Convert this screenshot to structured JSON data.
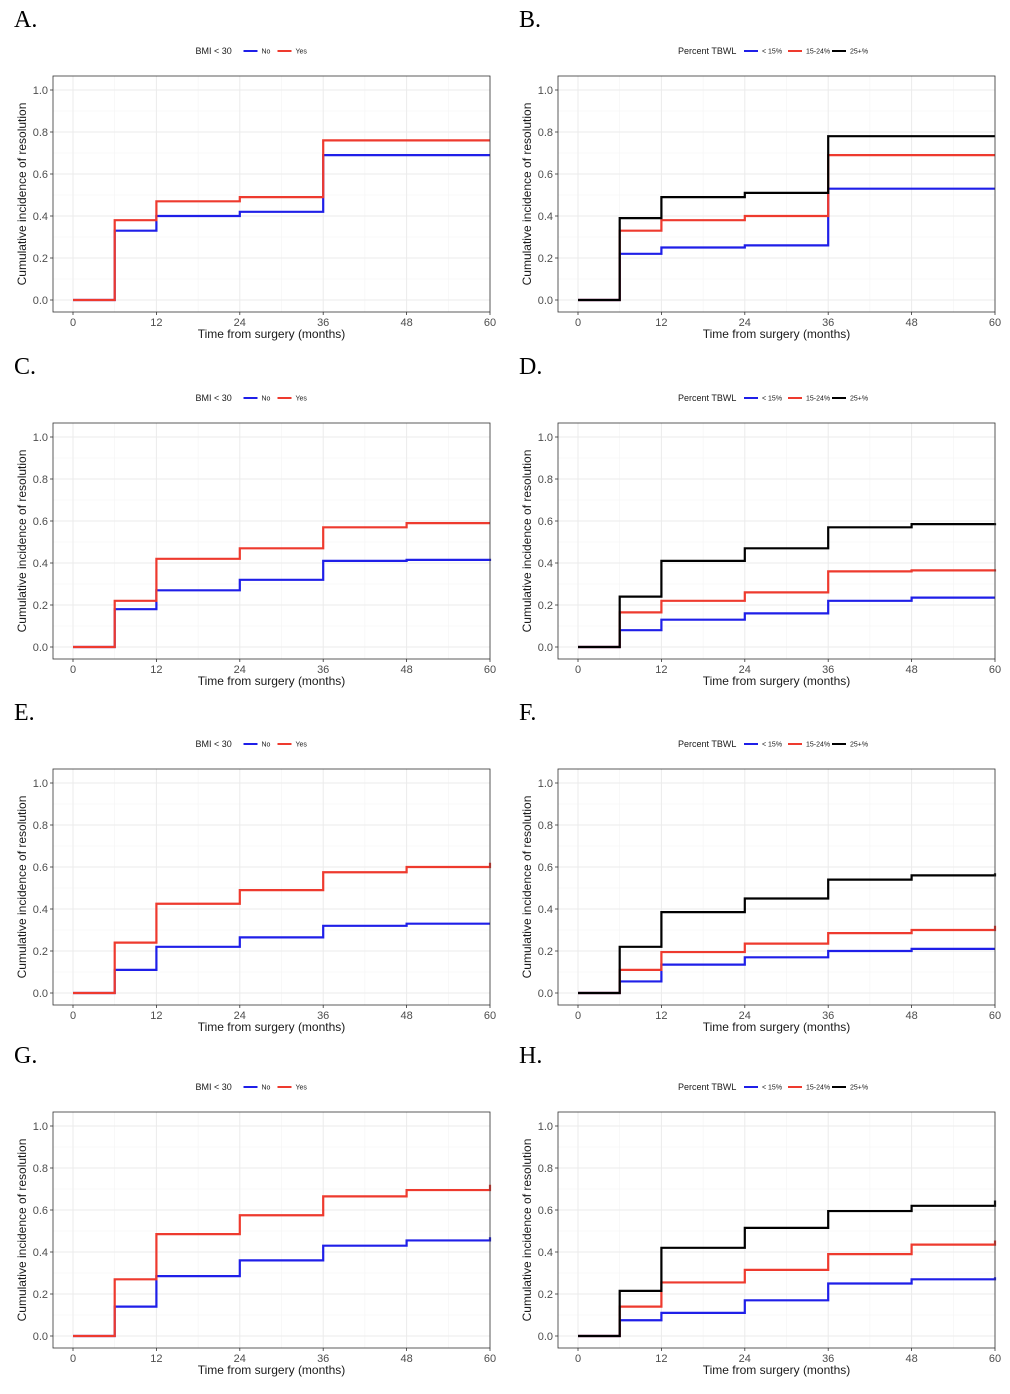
{
  "colors": {
    "blue": "#1f1fe8",
    "red": "#ee3a2e",
    "black": "#000000"
  },
  "chart_data": [
    {
      "panel": "A.",
      "type": "line",
      "title": "",
      "xlabel": "Time from surgery (months)",
      "ylabel": "Cumulative incidence of resolution",
      "xlim": [
        0,
        60
      ],
      "ylim": [
        0,
        1
      ],
      "xticks": [
        0,
        12,
        24,
        36,
        48,
        60
      ],
      "yticks": [
        0.0,
        0.2,
        0.4,
        0.6,
        0.8,
        1.0
      ],
      "legend": {
        "title": "BMI < 30",
        "position": "top"
      },
      "series": [
        {
          "name": "No",
          "color": "blue",
          "step": true,
          "x": [
            0,
            6,
            12,
            24,
            36,
            60
          ],
          "y": [
            0,
            0.33,
            0.4,
            0.42,
            0.69,
            0.69
          ]
        },
        {
          "name": "Yes",
          "color": "red",
          "step": true,
          "x": [
            0,
            6,
            12,
            24,
            36,
            60
          ],
          "y": [
            0,
            0.38,
            0.47,
            0.49,
            0.76,
            0.76
          ]
        }
      ]
    },
    {
      "panel": "B.",
      "type": "line",
      "title": "",
      "xlabel": "Time from surgery (months)",
      "ylabel": "Cumulative incidence of resolution",
      "xlim": [
        0,
        60
      ],
      "ylim": [
        0,
        1
      ],
      "xticks": [
        0,
        12,
        24,
        36,
        48,
        60
      ],
      "yticks": [
        0.0,
        0.2,
        0.4,
        0.6,
        0.8,
        1.0
      ],
      "legend": {
        "title": "Percent TBWL",
        "position": "top"
      },
      "series": [
        {
          "name": "< 15%",
          "color": "blue",
          "step": true,
          "x": [
            0,
            6,
            12,
            24,
            36,
            60
          ],
          "y": [
            0,
            0.22,
            0.25,
            0.26,
            0.53,
            0.53
          ]
        },
        {
          "name": "15-24%",
          "color": "red",
          "step": true,
          "x": [
            0,
            6,
            12,
            24,
            36,
            60
          ],
          "y": [
            0,
            0.33,
            0.38,
            0.4,
            0.69,
            0.69
          ]
        },
        {
          "name": "25+%",
          "color": "black",
          "step": true,
          "x": [
            0,
            6,
            12,
            24,
            36,
            60
          ],
          "y": [
            0,
            0.39,
            0.49,
            0.51,
            0.78,
            0.78
          ]
        }
      ]
    },
    {
      "panel": "C.",
      "type": "line",
      "title": "",
      "xlabel": "Time from surgery (months)",
      "ylabel": "Cumulative incidence of resolution",
      "xlim": [
        0,
        60
      ],
      "ylim": [
        0,
        1
      ],
      "xticks": [
        0,
        12,
        24,
        36,
        48,
        60
      ],
      "yticks": [
        0.0,
        0.2,
        0.4,
        0.6,
        0.8,
        1.0
      ],
      "legend": {
        "title": "BMI < 30",
        "position": "top"
      },
      "series": [
        {
          "name": "No",
          "color": "blue",
          "step": true,
          "x": [
            0,
            6,
            12,
            24,
            36,
            48,
            60
          ],
          "y": [
            0,
            0.18,
            0.27,
            0.32,
            0.41,
            0.415,
            0.42
          ]
        },
        {
          "name": "Yes",
          "color": "red",
          "step": true,
          "x": [
            0,
            6,
            12,
            24,
            36,
            48,
            60
          ],
          "y": [
            0,
            0.22,
            0.42,
            0.47,
            0.57,
            0.59,
            0.59
          ]
        }
      ]
    },
    {
      "panel": "D.",
      "type": "line",
      "title": "",
      "xlabel": "Time from surgery (months)",
      "ylabel": "Cumulative incidence of resolution",
      "xlim": [
        0,
        60
      ],
      "ylim": [
        0,
        1
      ],
      "xticks": [
        0,
        12,
        24,
        36,
        48,
        60
      ],
      "yticks": [
        0.0,
        0.2,
        0.4,
        0.6,
        0.8,
        1.0
      ],
      "legend": {
        "title": "Percent TBWL",
        "position": "top"
      },
      "series": [
        {
          "name": "< 15%",
          "color": "blue",
          "step": true,
          "x": [
            0,
            6,
            12,
            24,
            36,
            48,
            60
          ],
          "y": [
            0,
            0.08,
            0.13,
            0.16,
            0.22,
            0.235,
            0.235
          ]
        },
        {
          "name": "15-24%",
          "color": "red",
          "step": true,
          "x": [
            0,
            6,
            12,
            24,
            36,
            48,
            60
          ],
          "y": [
            0,
            0.165,
            0.22,
            0.26,
            0.36,
            0.365,
            0.37
          ]
        },
        {
          "name": "25+%",
          "color": "black",
          "step": true,
          "x": [
            0,
            6,
            12,
            24,
            36,
            48,
            60
          ],
          "y": [
            0,
            0.24,
            0.41,
            0.47,
            0.57,
            0.585,
            0.59
          ]
        }
      ]
    },
    {
      "panel": "E.",
      "type": "line",
      "title": "",
      "xlabel": "Time from surgery (months)",
      "ylabel": "Cumulative incidence of resolution",
      "xlim": [
        0,
        60
      ],
      "ylim": [
        0,
        1
      ],
      "xticks": [
        0,
        12,
        24,
        36,
        48,
        60
      ],
      "yticks": [
        0.0,
        0.2,
        0.4,
        0.6,
        0.8,
        1.0
      ],
      "legend": {
        "title": "BMI < 30",
        "position": "top"
      },
      "series": [
        {
          "name": "No",
          "color": "blue",
          "step": true,
          "x": [
            0,
            6,
            12,
            24,
            36,
            48,
            60
          ],
          "y": [
            0,
            0.11,
            0.22,
            0.265,
            0.32,
            0.33,
            0.33
          ]
        },
        {
          "name": "Yes",
          "color": "red",
          "step": true,
          "x": [
            0,
            6,
            12,
            24,
            36,
            48,
            60
          ],
          "y": [
            0,
            0.24,
            0.425,
            0.49,
            0.575,
            0.6,
            0.62
          ]
        }
      ]
    },
    {
      "panel": "F.",
      "type": "line",
      "title": "",
      "xlabel": "Time from surgery (months)",
      "ylabel": "Cumulative incidence of resolution",
      "xlim": [
        0,
        60
      ],
      "ylim": [
        0,
        1
      ],
      "xticks": [
        0,
        12,
        24,
        36,
        48,
        60
      ],
      "yticks": [
        0.0,
        0.2,
        0.4,
        0.6,
        0.8,
        1.0
      ],
      "legend": {
        "title": "Percent TBWL",
        "position": "top"
      },
      "series": [
        {
          "name": "< 15%",
          "color": "blue",
          "step": true,
          "x": [
            0,
            6,
            12,
            24,
            36,
            48,
            60
          ],
          "y": [
            0,
            0.055,
            0.135,
            0.17,
            0.2,
            0.21,
            0.21
          ]
        },
        {
          "name": "15-24%",
          "color": "red",
          "step": true,
          "x": [
            0,
            6,
            12,
            24,
            36,
            48,
            60
          ],
          "y": [
            0,
            0.11,
            0.195,
            0.235,
            0.285,
            0.3,
            0.32
          ]
        },
        {
          "name": "25+%",
          "color": "black",
          "step": true,
          "x": [
            0,
            6,
            12,
            24,
            36,
            48,
            60
          ],
          "y": [
            0,
            0.22,
            0.385,
            0.45,
            0.54,
            0.56,
            0.57
          ]
        }
      ]
    },
    {
      "panel": "G.",
      "type": "line",
      "title": "",
      "xlabel": "Time from surgery (months)",
      "ylabel": "Cumulative incidence of resolution",
      "xlim": [
        0,
        60
      ],
      "ylim": [
        0,
        1
      ],
      "xticks": [
        0,
        12,
        24,
        36,
        48,
        60
      ],
      "yticks": [
        0.0,
        0.2,
        0.4,
        0.6,
        0.8,
        1.0
      ],
      "legend": {
        "title": "BMI < 30",
        "position": "top"
      },
      "series": [
        {
          "name": "No",
          "color": "blue",
          "step": true,
          "x": [
            0,
            6,
            12,
            24,
            36,
            48,
            60
          ],
          "y": [
            0,
            0.14,
            0.285,
            0.36,
            0.43,
            0.455,
            0.47
          ]
        },
        {
          "name": "Yes",
          "color": "red",
          "step": true,
          "x": [
            0,
            6,
            12,
            24,
            36,
            48,
            60
          ],
          "y": [
            0,
            0.27,
            0.485,
            0.575,
            0.665,
            0.695,
            0.72
          ]
        }
      ]
    },
    {
      "panel": "H.",
      "type": "line",
      "title": "",
      "xlabel": "Time from surgery (months)",
      "ylabel": "Cumulative incidence of resolution",
      "xlim": [
        0,
        60
      ],
      "ylim": [
        0,
        1
      ],
      "xticks": [
        0,
        12,
        24,
        36,
        48,
        60
      ],
      "yticks": [
        0.0,
        0.2,
        0.4,
        0.6,
        0.8,
        1.0
      ],
      "legend": {
        "title": "Percent TBWL",
        "position": "top"
      },
      "series": [
        {
          "name": "< 15%",
          "color": "blue",
          "step": true,
          "x": [
            0,
            6,
            12,
            24,
            36,
            48,
            60
          ],
          "y": [
            0,
            0.075,
            0.11,
            0.17,
            0.25,
            0.27,
            0.28
          ]
        },
        {
          "name": "15-24%",
          "color": "red",
          "step": true,
          "x": [
            0,
            6,
            12,
            24,
            36,
            48,
            60
          ],
          "y": [
            0,
            0.14,
            0.255,
            0.315,
            0.39,
            0.435,
            0.455
          ]
        },
        {
          "name": "25+%",
          "color": "black",
          "step": true,
          "x": [
            0,
            6,
            12,
            24,
            36,
            48,
            60
          ],
          "y": [
            0,
            0.215,
            0.42,
            0.515,
            0.595,
            0.62,
            0.645
          ]
        }
      ]
    }
  ]
}
